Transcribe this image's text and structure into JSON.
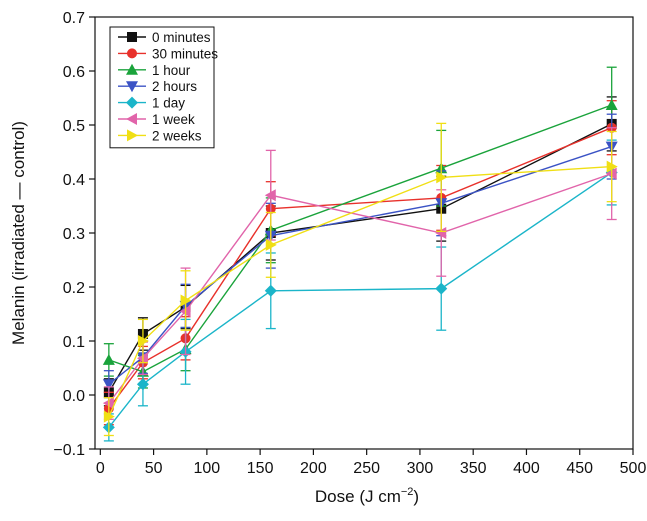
{
  "chart_data": {
    "type": "line",
    "xlabel": "Dose (J cm",
    "xlabel_sup": "−2",
    "xlabel_end": ")",
    "ylabel": "Melanin (irradiated — control)",
    "xlim": [
      -5,
      500
    ],
    "ylim": [
      -0.1,
      0.7
    ],
    "xticks": [
      "0",
      "50",
      "100",
      "150",
      "200",
      "250",
      "300",
      "350",
      "400",
      "450",
      "500"
    ],
    "yticks": [
      "−0.1",
      "0.0",
      "0.1",
      "0.2",
      "0.3",
      "0.4",
      "0.5",
      "0.6",
      "0.7"
    ],
    "legend_position": "top-left",
    "x": [
      8,
      40,
      80,
      160,
      320,
      480
    ],
    "series": [
      {
        "name": "0 minutes",
        "color": "#111111",
        "marker": "square",
        "values": [
          0.005,
          0.113,
          0.163,
          0.3,
          0.345,
          0.502
        ],
        "errors": [
          0.025,
          0.03,
          0.04,
          0.05,
          0.06,
          0.05
        ]
      },
      {
        "name": "30 minutes",
        "color": "#e8312b",
        "marker": "circle",
        "values": [
          -0.025,
          0.06,
          0.105,
          0.345,
          0.365,
          0.495
        ],
        "errors": [
          0.03,
          0.03,
          0.04,
          0.05,
          0.06,
          0.05
        ]
      },
      {
        "name": "1 hour",
        "color": "#1aa33b",
        "marker": "triangle-up",
        "values": [
          0.065,
          0.043,
          0.085,
          0.305,
          0.42,
          0.537
        ],
        "errors": [
          0.03,
          0.03,
          0.04,
          0.06,
          0.07,
          0.07
        ]
      },
      {
        "name": "2 hours",
        "color": "#3b53c5",
        "marker": "triangle-down",
        "values": [
          0.02,
          0.07,
          0.165,
          0.295,
          0.355,
          0.46
        ],
        "errors": [
          0.025,
          0.03,
          0.04,
          0.06,
          0.06,
          0.06
        ]
      },
      {
        "name": "1 day",
        "color": "#1bb5c9",
        "marker": "diamond",
        "values": [
          -0.06,
          0.02,
          0.08,
          0.193,
          0.197,
          0.412
        ],
        "errors": [
          0.025,
          0.04,
          0.06,
          0.07,
          0.077,
          0.06
        ]
      },
      {
        "name": "1 week",
        "color": "#e164aa",
        "marker": "triangle-left",
        "values": [
          -0.015,
          0.068,
          0.155,
          0.37,
          0.3,
          0.41
        ],
        "errors": [
          0.03,
          0.03,
          0.08,
          0.083,
          0.08,
          0.085
        ]
      },
      {
        "name": "2 weeks",
        "color": "#f0df14",
        "marker": "triangle-right",
        "values": [
          -0.04,
          0.1,
          0.175,
          0.278,
          0.403,
          0.423
        ],
        "errors": [
          0.035,
          0.04,
          0.055,
          0.06,
          0.1,
          0.065
        ]
      }
    ]
  }
}
